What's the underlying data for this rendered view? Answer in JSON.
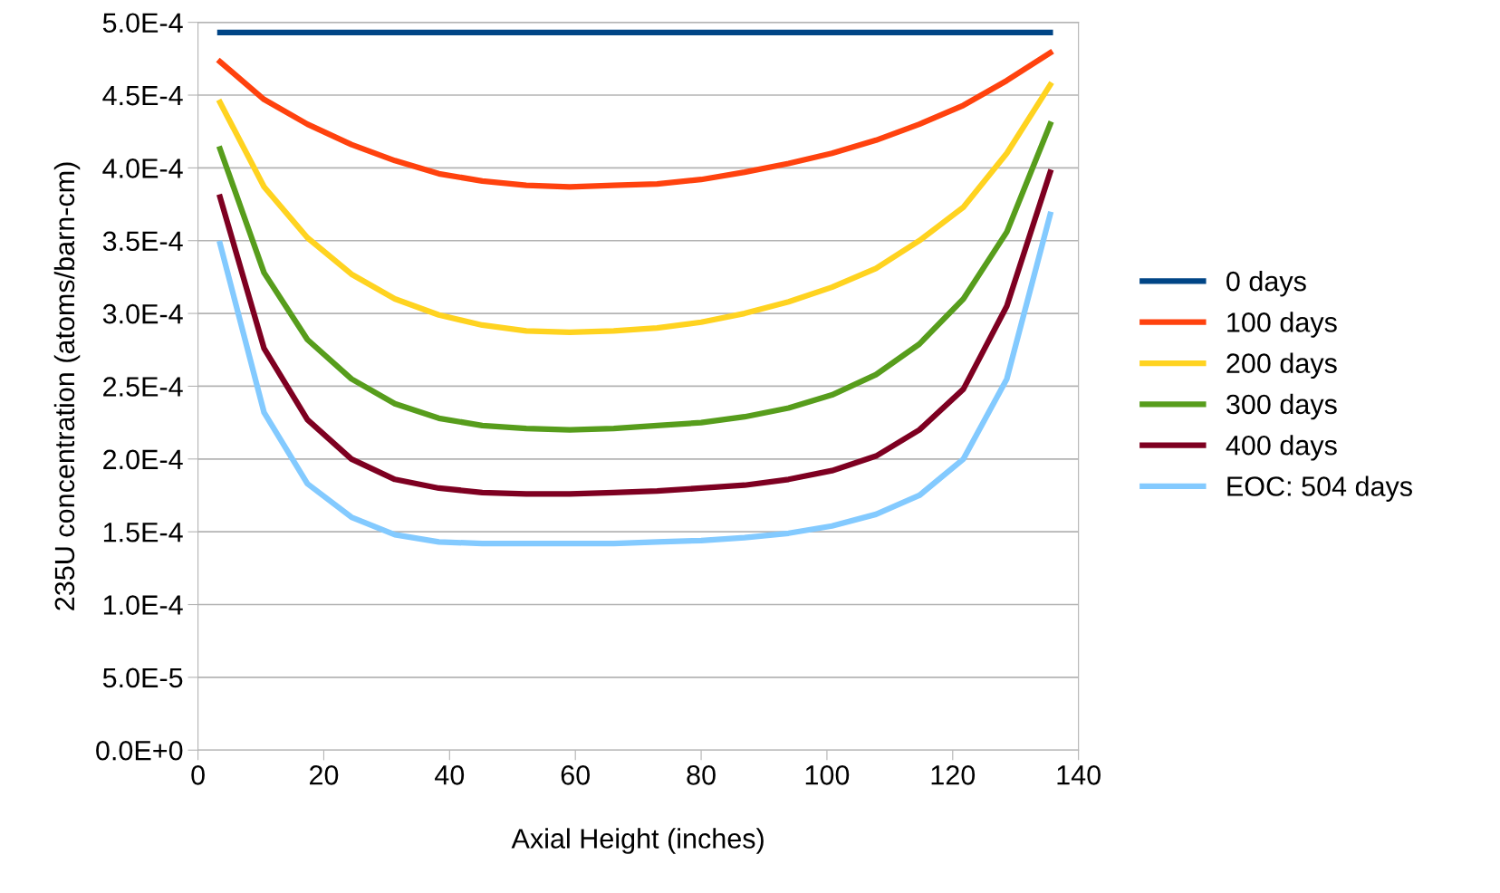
{
  "chart_data": {
    "type": "line",
    "xlabel": "Axial Height (inches)",
    "ylabel": "235U concentration (atoms/barn-cm)",
    "x": [
      3.5,
      10.5,
      17.4,
      24.4,
      31.3,
      38.3,
      45.2,
      52.2,
      59.1,
      66.1,
      73,
      80,
      86.9,
      93.9,
      100.8,
      107.8,
      114.7,
      121.7,
      128.6,
      135.5
    ],
    "series": [
      {
        "name": "0 days",
        "color": "#004586",
        "values": [
          0.000493,
          0.000493,
          0.000493,
          0.000493,
          0.000493,
          0.000493,
          0.000493,
          0.000493,
          0.000493,
          0.000493,
          0.000493,
          0.000493,
          0.000493,
          0.000493,
          0.000493,
          0.000493,
          0.000493,
          0.000493,
          0.000493,
          0.000493
        ]
      },
      {
        "name": "100 days",
        "color": "#ff420e",
        "values": [
          0.000473,
          0.000447,
          0.00043,
          0.000416,
          0.000405,
          0.000396,
          0.000391,
          0.000388,
          0.000387,
          0.000388,
          0.000389,
          0.000392,
          0.000397,
          0.000403,
          0.00041,
          0.000419,
          0.00043,
          0.000443,
          0.00046,
          0.000479
        ]
      },
      {
        "name": "200 days",
        "color": "#ffd320",
        "values": [
          0.000445,
          0.000387,
          0.000352,
          0.000327,
          0.00031,
          0.000299,
          0.000292,
          0.000288,
          0.000287,
          0.000288,
          0.00029,
          0.000294,
          0.0003,
          0.000308,
          0.000318,
          0.000331,
          0.00035,
          0.000373,
          0.00041,
          0.000457
        ]
      },
      {
        "name": "300 days",
        "color": "#579d1c",
        "values": [
          0.000413,
          0.000328,
          0.000282,
          0.000255,
          0.000238,
          0.000228,
          0.000223,
          0.000221,
          0.00022,
          0.000221,
          0.000223,
          0.000225,
          0.000229,
          0.000235,
          0.000244,
          0.000258,
          0.000279,
          0.00031,
          0.000356,
          0.00043
        ]
      },
      {
        "name": "400 days",
        "color": "#7e0021",
        "values": [
          0.00038,
          0.000276,
          0.000227,
          0.0002,
          0.000186,
          0.00018,
          0.000177,
          0.000176,
          0.000176,
          0.000177,
          0.000178,
          0.00018,
          0.000182,
          0.000186,
          0.000192,
          0.000202,
          0.00022,
          0.000248,
          0.000305,
          0.000397
        ]
      },
      {
        "name": "EOC: 504 days",
        "color": "#83caff",
        "values": [
          0.000348,
          0.000232,
          0.000183,
          0.00016,
          0.000148,
          0.000143,
          0.000142,
          0.000142,
          0.000142,
          0.000142,
          0.000143,
          0.000144,
          0.000146,
          0.000149,
          0.000154,
          0.000162,
          0.000175,
          0.0002,
          0.000255,
          0.000368
        ]
      }
    ],
    "xlim": [
      0,
      140
    ],
    "xticks": [
      0,
      20,
      40,
      60,
      80,
      100,
      120,
      140
    ],
    "ylim": [
      0,
      0.0005
    ],
    "yticks": [
      {
        "value": 0,
        "label": "0.0E+0"
      },
      {
        "value": 5e-05,
        "label": "5.0E-5"
      },
      {
        "value": 0.0001,
        "label": "1.0E-4"
      },
      {
        "value": 0.00015,
        "label": "1.5E-4"
      },
      {
        "value": 0.0002,
        "label": "2.0E-4"
      },
      {
        "value": 0.00025,
        "label": "2.5E-4"
      },
      {
        "value": 0.0003,
        "label": "3.0E-4"
      },
      {
        "value": 0.00035,
        "label": "3.5E-4"
      },
      {
        "value": 0.0004,
        "label": "4.0E-4"
      },
      {
        "value": 0.00045,
        "label": "4.5E-4"
      },
      {
        "value": 0.0005,
        "label": "5.0E-4"
      }
    ],
    "grid": "y",
    "legend": "right",
    "marker": "none",
    "line_style": "solid"
  }
}
